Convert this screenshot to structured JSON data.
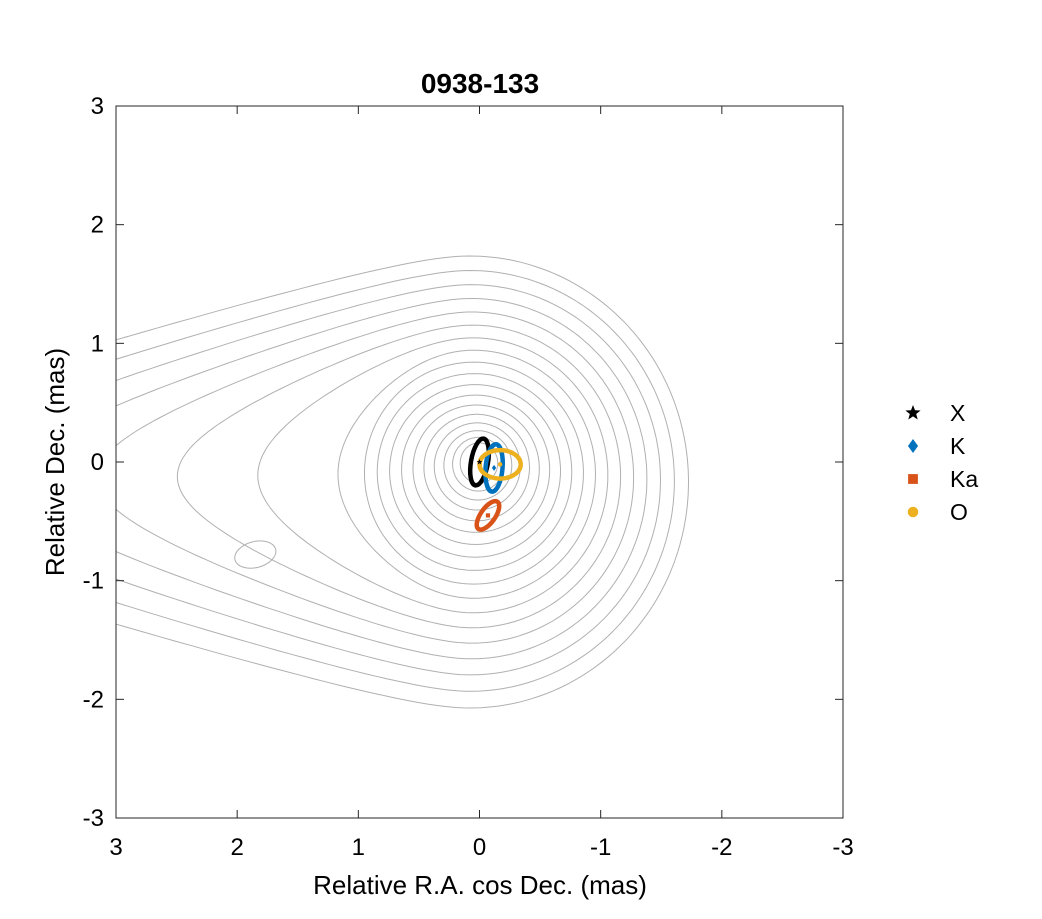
{
  "chart_data": {
    "type": "scatter",
    "title": "0938-133",
    "xlabel": "Relative R.A. cos Dec. (mas)",
    "ylabel": "Relative Dec. (mas)",
    "xlim": [
      3,
      -3
    ],
    "ylim": [
      -3,
      3
    ],
    "x_reversed": true,
    "xticks": [
      3,
      2,
      1,
      0,
      -1,
      -2,
      -3
    ],
    "yticks": [
      -3,
      -2,
      -1,
      0,
      1,
      2,
      3
    ],
    "xtick_labels": [
      "3",
      "2",
      "1",
      "0",
      "-1",
      "-2",
      "-3"
    ],
    "ytick_labels": [
      "-3",
      "-2",
      "-1",
      "0",
      "1",
      "2",
      "3"
    ],
    "grid": false,
    "legend_position": "outside-right",
    "contour_color": "#b0b0b0",
    "contour_levels": 18,
    "series": [
      {
        "name": "X",
        "marker": "star",
        "color": "#000000",
        "x": 0.0,
        "y": 0.0,
        "ellipse": {
          "rx": 0.07,
          "ry": 0.2,
          "angle": 10
        }
      },
      {
        "name": "K",
        "marker": "diamond",
        "color": "#0072BD",
        "x": -0.12,
        "y": -0.05,
        "ellipse": {
          "rx": 0.07,
          "ry": 0.2,
          "angle": 5
        }
      },
      {
        "name": "Ka",
        "marker": "square",
        "color": "#D95319",
        "x": -0.07,
        "y": -0.45,
        "ellipse": {
          "rx": 0.06,
          "ry": 0.14,
          "angle": 35
        }
      },
      {
        "name": "O",
        "marker": "circle",
        "color": "#EDB120",
        "x": -0.17,
        "y": -0.02,
        "ellipse": {
          "rx": 0.17,
          "ry": 0.12,
          "angle": 0
        }
      }
    ]
  }
}
